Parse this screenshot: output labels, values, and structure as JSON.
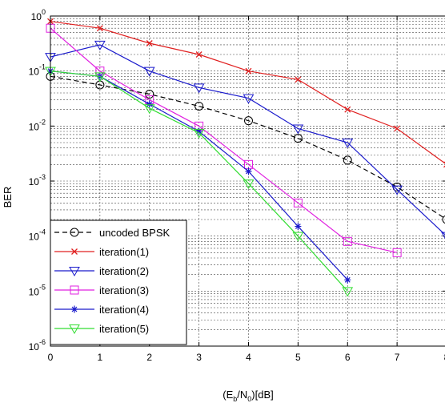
{
  "chart_data": {
    "type": "line",
    "title": "",
    "xlabel_main": "(E",
    "xlabel_sub1": "b",
    "xlabel_mid": "/N",
    "xlabel_sub2": "0",
    "xlabel_tail": ")[dB]",
    "ylabel": "BER",
    "x_ticks": [
      "0",
      "1",
      "2",
      "3",
      "4",
      "5",
      "6",
      "7",
      "8"
    ],
    "y_ticks": [
      {
        "base": "10",
        "exp": "0"
      },
      {
        "base": "10",
        "exp": "-1"
      },
      {
        "base": "10",
        "exp": "-2"
      },
      {
        "base": "10",
        "exp": "-3"
      },
      {
        "base": "10",
        "exp": "-4"
      },
      {
        "base": "10",
        "exp": "-5"
      },
      {
        "base": "10",
        "exp": "-6"
      }
    ],
    "xlim": [
      0,
      8
    ],
    "ylim": [
      1e-06,
      1
    ],
    "yscale": "log",
    "grid": true,
    "legend_position": "bottom-left",
    "series": [
      {
        "name": "uncoded BPSK",
        "color": "#000000",
        "dash": "6,4",
        "marker": "circle",
        "x": [
          0,
          1,
          2,
          3,
          4,
          5,
          6,
          7,
          8
        ],
        "y": [
          0.08,
          0.056,
          0.038,
          0.023,
          0.0125,
          0.006,
          0.0024,
          0.00078,
          0.0002
        ]
      },
      {
        "name": "iteration(1)",
        "color": "#e02020",
        "dash": "",
        "marker": "x",
        "x": [
          0,
          1,
          2,
          3,
          4,
          5,
          6,
          7,
          8
        ],
        "y": [
          0.8,
          0.6,
          0.32,
          0.2,
          0.1,
          0.07,
          0.02,
          0.009,
          0.002
        ]
      },
      {
        "name": "iteration(2)",
        "color": "#1a1acc",
        "dash": "",
        "marker": "triangle-down",
        "x": [
          0,
          1,
          2,
          3,
          4,
          5,
          6,
          7,
          8
        ],
        "y": [
          0.18,
          0.3,
          0.1,
          0.05,
          0.032,
          0.009,
          0.005,
          0.0007,
          0.0001
        ]
      },
      {
        "name": "iteration(3)",
        "color": "#e020e0",
        "dash": "",
        "marker": "square",
        "x": [
          0,
          1,
          2,
          3,
          4,
          5,
          6,
          7
        ],
        "y": [
          0.6,
          0.1,
          0.03,
          0.01,
          0.002,
          0.0004,
          8e-05,
          5e-05
        ]
      },
      {
        "name": "iteration(4)",
        "color": "#1a1acc",
        "dash": "",
        "marker": "asterisk",
        "x": [
          0,
          1,
          2,
          3,
          4,
          5,
          6
        ],
        "y": [
          0.1,
          0.08,
          0.025,
          0.008,
          0.0015,
          0.00015,
          1.6e-05
        ]
      },
      {
        "name": "iteration(5)",
        "color": "#33dd33",
        "dash": "",
        "marker": "triangle-down",
        "x": [
          0,
          1,
          2,
          3,
          4,
          5,
          6
        ],
        "y": [
          0.1,
          0.08,
          0.021,
          0.0075,
          0.0009,
          0.0001,
          1e-05
        ]
      }
    ]
  }
}
